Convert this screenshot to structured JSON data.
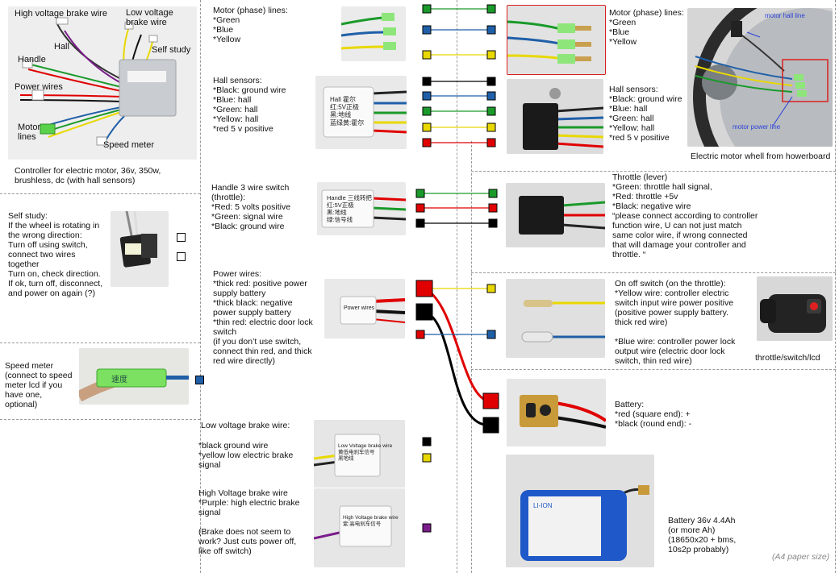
{
  "controller": {
    "labels": {
      "high_brake": "High voltage brake wire",
      "low_brake": "Low voltage\nbrake wire",
      "hall": "Hall",
      "self_study": "Self study",
      "handle": "Handle",
      "power": "Power wires",
      "motor": "Motor\nlines",
      "speed": "Speed meter"
    },
    "caption": "Controller for electric motor, 36v, 350w,\nbrushless, dc (with hall sensors)"
  },
  "motor_lines": "Motor (phase) lines:\n*Green\n*Blue\n*Yellow",
  "hall_sensors": "Hall sensors:\n*Black: ground wire\n*Blue: hall\n*Green: hall\n*Yellow: hall\n*red 5 v positive",
  "handle": "Handle  3  wire switch\n(throttle):\n*Red: 5 volts positive\n*Green: signal wire\n*Black: ground wire",
  "self_study": "Self study:\nIf the wheel is rotating in\nthe wrong direction:\nTurn off using switch,\nconnect two wires\ntogether\nTurn on, check direction.\nIf ok, turn off, disconnect,\nand power on again (?)",
  "power_wires": "Power wires:\n*thick  red: positive power\nsupply battery\n*thick black:  negative\npower supply battery\n*thin red: electric door lock\nswitch\n(if you don’t use switch,\nconnect thin red,  and thick\nred wire directly)",
  "speed_meter": "Speed meter\n(connect to speed\nmeter lcd if you\nhave one,\noptional)",
  "low_brake": {
    "title": "Low voltage brake wire:",
    "body": "*black  ground wire\n*yellow low electric brake\nsignal"
  },
  "high_brake": "High Voltage brake wire\n*Purple: high electric  brake\nsignal\n\n(Brake does not seem to\nwork? Just cuts power off,\nlike off switch)",
  "motor_right": {
    "text": "Motor (phase) lines:\n*Green\n*Blue\n*Yellow",
    "hall_line_label": "motor hall line",
    "power_line_label": "motor power line"
  },
  "hall_right": "Hall sensors:\n*Black: ground wire\n*Blue: hall\n*Green: hall\n*Yellow: hall\n*red 5 v positive",
  "hoverboard_caption": "Electric motor whell from howerboard",
  "throttle": "Throttle (lever)\n*Green: throttle hall signal,\n*Red: throttle +5v\n*Black: negative wire\n“please connect according to controller\nfunction wire, U can not just match\nsame color wire, if wrong connected\nthat will damage your controller and\nthrottle. “",
  "onoff": "On off switch (on the throttle):\n*Yellow wire: controller electric\nswitch input wire power positive\n(positive power supply battery.\nthick red wire)\n\n*Blue wire: controller power lock\noutput wire (electric door lock\nswitch, thin red wire)",
  "throttle_lcd": "throttle/switch/lcd",
  "battery_conn": "Battery:\n*red (square end): +\n*black (round end): -",
  "battery_pack": "Battery 36v 4.4Ah\n(or more Ah)\n(18650x20 + bms,\n10s2p probably)",
  "paper_size": "(A4 paper size)",
  "photo_text": {
    "hall_label": "Hall 霍尔\n红:5V正极\n黑:地线\n蓝绿黄:霍尔",
    "handle_label": "Handle 三线转把\n红:5V正极\n黑:地线\n绿:信号线",
    "power_label": "Power wires",
    "speed_label": "速度",
    "low_brake_label": "Low Voltage brake wire\n黄低电刹车信号\n黑地线",
    "high_brake_label": "High Voltage brake wire\n紫:高电刹车信号",
    "battery_label": "LI-ION"
  },
  "colors": {
    "green": "#1a9a2a",
    "blue": "#1f5fa8",
    "yellow": "#e8d800",
    "black": "#000000",
    "red": "#e00000",
    "purple": "#7a1c8a",
    "annot_blue": "#2a40d8",
    "highlight_red": "#d82020"
  }
}
